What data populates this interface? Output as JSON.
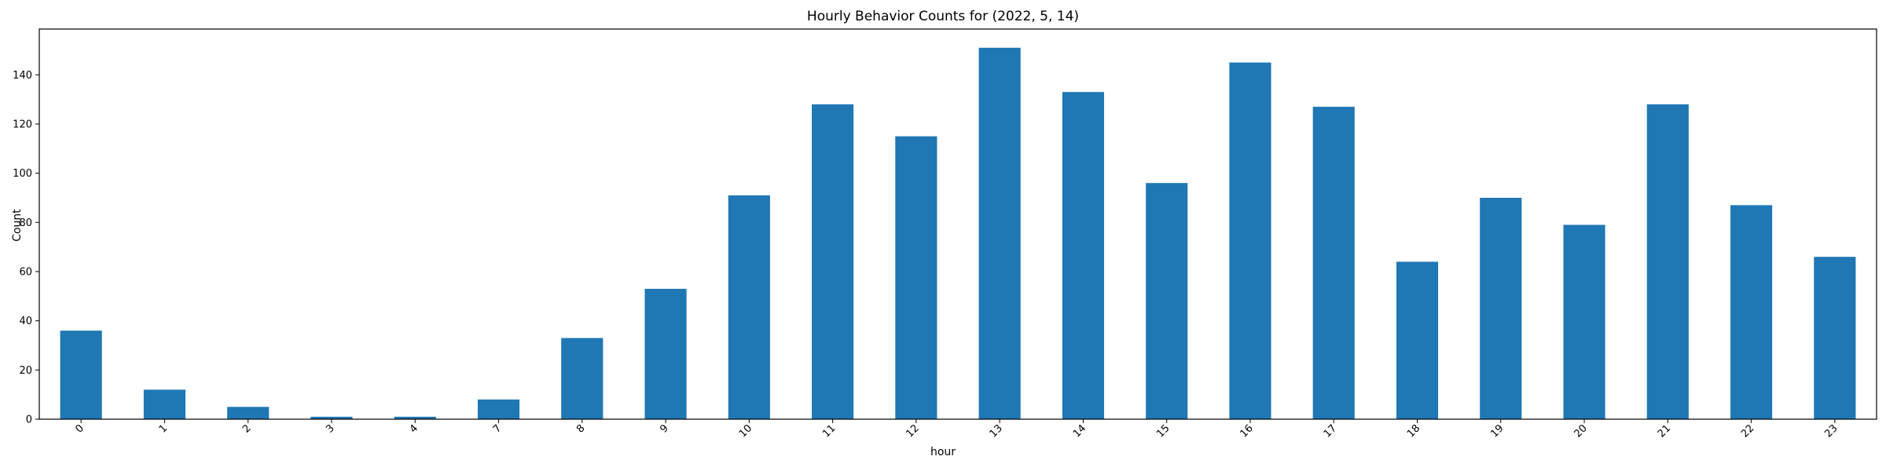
{
  "chart_data": {
    "type": "bar",
    "title": "Hourly Behavior Counts for (2022, 5, 14)",
    "xlabel": "hour",
    "ylabel": "Count",
    "categories": [
      "0",
      "1",
      "2",
      "3",
      "4",
      "7",
      "8",
      "9",
      "10",
      "11",
      "12",
      "13",
      "14",
      "15",
      "16",
      "17",
      "18",
      "19",
      "20",
      "21",
      "22",
      "23"
    ],
    "values": [
      36,
      12,
      5,
      1,
      1,
      8,
      33,
      53,
      91,
      128,
      115,
      151,
      133,
      96,
      145,
      127,
      64,
      90,
      79,
      128,
      87,
      66
    ],
    "ylim": [
      0,
      158.6
    ],
    "yticks": [
      0,
      20,
      40,
      60,
      80,
      100,
      120,
      140
    ],
    "bar_color": "#1f77b4",
    "grid": false,
    "legend": "none"
  }
}
